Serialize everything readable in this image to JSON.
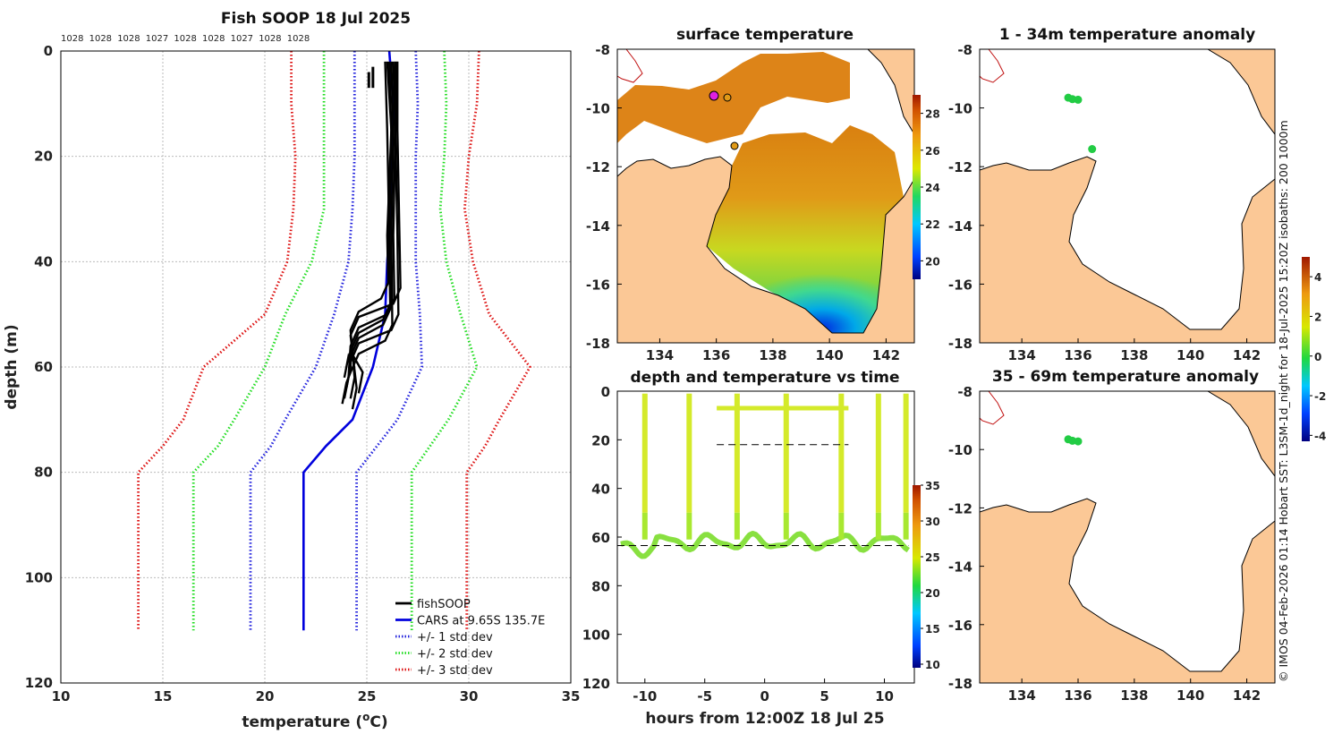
{
  "figure_title": "Fish SOOP 18 Jul 2025",
  "credit": "© IMOS 04-Feb-2026 01:14 Hobart SST: L3SM-1d_night for 18-Jul-2025 15:20Z isobaths: 200  1000m",
  "colors": {
    "fish": "#000000",
    "cars": "#0000dd",
    "std1": "#2222dd",
    "std2": "#22dd22",
    "std3": "#dd1111",
    "land": "#fbc896"
  },
  "chart_data": [
    {
      "id": "profile",
      "type": "line",
      "title": "Fish SOOP 18 Jul 2025",
      "xlabel": "temperature (°C)",
      "ylabel": "depth (m)",
      "xlim": [
        10,
        35
      ],
      "ylim": [
        0,
        120
      ],
      "y_reversed": true,
      "grid": true,
      "xticks": [
        "10",
        "15",
        "20",
        "25",
        "30",
        "35"
      ],
      "yticks": [
        "0",
        "20",
        "40",
        "60",
        "80",
        "100",
        "120"
      ],
      "density_labels": [
        "1028",
        "1028",
        "1028",
        "1027",
        "1028",
        "1028",
        "1027",
        "1028",
        "1028"
      ],
      "legend_position": "bottom-right",
      "legend": [
        "fishSOOP",
        "CARS at 9.65S 135.7E",
        "+/- 1 std dev",
        "+/- 2 std dev",
        "+/- 3 std dev"
      ],
      "series": [
        {
          "name": "CARS at 9.65S 135.7E",
          "style": "solid",
          "color": "#0000dd",
          "points": [
            [
              26.1,
              0
            ],
            [
              26.2,
              5
            ],
            [
              26.3,
              10
            ],
            [
              26.25,
              20
            ],
            [
              26.2,
              30
            ],
            [
              26.0,
              40
            ],
            [
              25.9,
              50
            ],
            [
              25.3,
              60
            ],
            [
              24.3,
              70
            ],
            [
              23.0,
              75
            ],
            [
              21.9,
              80
            ],
            [
              21.9,
              90
            ],
            [
              21.9,
              100
            ],
            [
              21.9,
              110
            ]
          ]
        },
        {
          "name": "+/- 1 std dev (low)",
          "style": "dotted",
          "color": "#2222dd",
          "points": [
            [
              24.4,
              0
            ],
            [
              24.4,
              10
            ],
            [
              24.4,
              20
            ],
            [
              24.3,
              30
            ],
            [
              24.1,
              40
            ],
            [
              23.4,
              50
            ],
            [
              22.5,
              60
            ],
            [
              21.0,
              70
            ],
            [
              20.3,
              75
            ],
            [
              19.3,
              80
            ],
            [
              19.3,
              110
            ]
          ]
        },
        {
          "name": "+/- 1 std dev (high)",
          "style": "dotted",
          "color": "#2222dd",
          "points": [
            [
              27.4,
              0
            ],
            [
              27.5,
              10
            ],
            [
              27.4,
              20
            ],
            [
              27.4,
              30
            ],
            [
              27.4,
              40
            ],
            [
              27.6,
              50
            ],
            [
              27.7,
              60
            ],
            [
              26.5,
              70
            ],
            [
              25.5,
              75
            ],
            [
              24.5,
              80
            ],
            [
              24.5,
              110
            ]
          ]
        },
        {
          "name": "+/- 2 std dev (low)",
          "style": "dotted",
          "color": "#22dd22",
          "points": [
            [
              22.9,
              0
            ],
            [
              22.9,
              10
            ],
            [
              22.9,
              20
            ],
            [
              22.9,
              30
            ],
            [
              22.3,
              40
            ],
            [
              21.0,
              50
            ],
            [
              20.0,
              60
            ],
            [
              18.5,
              70
            ],
            [
              17.7,
              75
            ],
            [
              16.5,
              80
            ],
            [
              16.5,
              110
            ]
          ]
        },
        {
          "name": "+/- 2 std dev (high)",
          "style": "dotted",
          "color": "#22dd22",
          "points": [
            [
              28.8,
              0
            ],
            [
              28.9,
              10
            ],
            [
              28.8,
              20
            ],
            [
              28.6,
              30
            ],
            [
              28.9,
              40
            ],
            [
              29.6,
              50
            ],
            [
              30.4,
              60
            ],
            [
              29.0,
              70
            ],
            [
              28.1,
              75
            ],
            [
              27.2,
              80
            ],
            [
              27.2,
              110
            ]
          ]
        },
        {
          "name": "+/- 3 std dev (low)",
          "style": "dotted",
          "color": "#dd1111",
          "points": [
            [
              21.3,
              0
            ],
            [
              21.3,
              10
            ],
            [
              21.5,
              20
            ],
            [
              21.4,
              30
            ],
            [
              21.1,
              40
            ],
            [
              20.0,
              50
            ],
            [
              17.0,
              60
            ],
            [
              16.0,
              70
            ],
            [
              15.0,
              75
            ],
            [
              13.8,
              80
            ],
            [
              13.8,
              110
            ]
          ]
        },
        {
          "name": "+/- 3 std dev (high)",
          "style": "dotted",
          "color": "#dd1111",
          "points": [
            [
              30.5,
              0
            ],
            [
              30.4,
              10
            ],
            [
              30.0,
              20
            ],
            [
              29.8,
              30
            ],
            [
              30.2,
              40
            ],
            [
              31.0,
              50
            ],
            [
              33.0,
              60
            ],
            [
              31.5,
              70
            ],
            [
              30.8,
              75
            ],
            [
              29.9,
              80
            ],
            [
              29.9,
              110
            ]
          ]
        }
      ]
    },
    {
      "id": "sst_map",
      "type": "heatmap",
      "title": "surface temperature",
      "xlim": [
        132.5,
        143
      ],
      "ylim": [
        -18,
        -8
      ],
      "xticks": [
        "134",
        "136",
        "138",
        "140",
        "142"
      ],
      "yticks": [
        "-8",
        "-10",
        "-12",
        "-14",
        "-16",
        "-18"
      ],
      "colorbar": {
        "range": [
          19,
          29
        ],
        "ticks": [
          "20",
          "22",
          "24",
          "26",
          "28"
        ]
      },
      "markers": [
        [
          135.8,
          -9.65
        ],
        [
          136.2,
          -9.65
        ],
        [
          136.5,
          -11.3
        ]
      ]
    },
    {
      "id": "anom_map_1",
      "type": "scatter",
      "title": "1 - 34m temperature anomaly",
      "xlim": [
        132.5,
        143
      ],
      "ylim": [
        -18,
        -8
      ],
      "xticks": [
        "134",
        "136",
        "138",
        "140",
        "142"
      ],
      "yticks": [
        "-8",
        "-10",
        "-12",
        "-14",
        "-16",
        "-18"
      ],
      "points": [
        [
          135.65,
          -9.65
        ],
        [
          135.8,
          -9.7
        ],
        [
          136.0,
          -9.72
        ],
        [
          136.5,
          -11.4
        ]
      ]
    },
    {
      "id": "anom_map_2",
      "type": "scatter",
      "title": "35 - 69m temperature anomaly",
      "xlim": [
        132.5,
        143
      ],
      "ylim": [
        -18,
        -8
      ],
      "xticks": [
        "134",
        "136",
        "138",
        "140",
        "142"
      ],
      "yticks": [
        "-8",
        "-10",
        "-12",
        "-14",
        "-16",
        "-18"
      ],
      "points": [
        [
          135.65,
          -9.65
        ],
        [
          135.8,
          -9.7
        ],
        [
          136.0,
          -9.72
        ]
      ],
      "colorbar": {
        "range": [
          -4.3,
          5
        ],
        "ticks": [
          "4",
          "2",
          "0",
          "-2",
          "-4"
        ]
      }
    },
    {
      "id": "depth_time",
      "type": "scatter",
      "title": "depth and temperature vs time",
      "xlabel": "hours from 12:00Z 18 Jul 25",
      "xlim": [
        -12.3,
        12.5
      ],
      "ylim": [
        0,
        120
      ],
      "y_reversed": true,
      "xticks": [
        "-10",
        "-5",
        "0",
        "5",
        "10"
      ],
      "yticks": [
        "0",
        "20",
        "40",
        "60",
        "80",
        "100",
        "120"
      ],
      "colorbar": {
        "range": [
          9.5,
          35
        ],
        "ticks": [
          "35",
          "30",
          "25",
          "20",
          "15",
          "10"
        ]
      },
      "casts_hours": [
        -10.0,
        -6.3,
        -2.3,
        1.8,
        6.4,
        9.5,
        11.8
      ],
      "surface_depth": 7,
      "bottom_depth_range": [
        61,
        67
      ],
      "reference_lines": [
        {
          "x": [
            -4,
            7
          ],
          "depth": 22
        },
        {
          "x": [
            -12.3,
            12
          ],
          "depth": 63.5
        }
      ]
    }
  ]
}
